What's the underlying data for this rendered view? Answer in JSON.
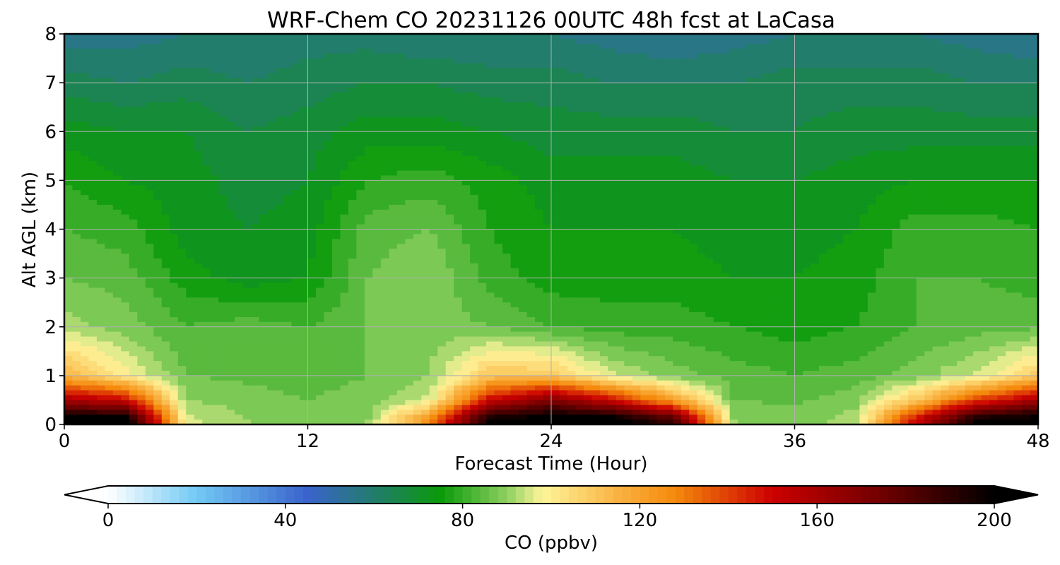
{
  "chart_data": {
    "type": "heatmap",
    "subtype": "filled-contour time-height cross-section",
    "title": "WRF-Chem CO  20231126 00UTC 48h fcst at LaCasa",
    "xlabel": "Forecast Time (Hour)",
    "ylabel": "Alt AGL (km)",
    "xlim": [
      0,
      48
    ],
    "ylim": [
      0,
      8
    ],
    "xticks": [
      "0",
      "12",
      "24",
      "36",
      "48"
    ],
    "yticks": [
      "0",
      "1",
      "2",
      "3",
      "4",
      "5",
      "6",
      "7",
      "8"
    ],
    "grid": true,
    "colorbar": {
      "label": "CO  (ppbv)",
      "range": [
        0,
        200
      ],
      "ticks": [
        "0",
        "40",
        "80",
        "120",
        "160",
        "200"
      ],
      "extend": "both",
      "orientation": "horizontal",
      "stops": [
        {
          "v": 0,
          "color": "#ffffff"
        },
        {
          "v": 20,
          "color": "#72c9f4"
        },
        {
          "v": 45,
          "color": "#3a63cc"
        },
        {
          "v": 62,
          "color": "#1f8060"
        },
        {
          "v": 75,
          "color": "#0a9a0a"
        },
        {
          "v": 90,
          "color": "#8ed060"
        },
        {
          "v": 98,
          "color": "#fff59a"
        },
        {
          "v": 115,
          "color": "#f9b242"
        },
        {
          "v": 128,
          "color": "#f58a0c"
        },
        {
          "v": 150,
          "color": "#cc0000"
        },
        {
          "v": 175,
          "color": "#6e0000"
        },
        {
          "v": 200,
          "color": "#000000"
        }
      ]
    },
    "field_description": "CO concentration vs forecast hour (x) and altitude (y): highest values (>200 ppbv) near surface around hours 0-3, 17-30 and 42-48; ~85-95 ppbv mid-levels; ~55-65 ppbv near 8 km.",
    "field_samples": {
      "hours": [
        0,
        3,
        6,
        9,
        12,
        15,
        18,
        21,
        24,
        27,
        30,
        33,
        36,
        39,
        42,
        45,
        48
      ],
      "altitudes_km": [
        0.1,
        0.5,
        1.0,
        2.0,
        3.0,
        4.0,
        5.0,
        6.0,
        7.0,
        8.0
      ],
      "values_ppbv": [
        [
          205,
          205,
          95,
          90,
          88,
          90,
          125,
          200,
          205,
          205,
          185,
          90,
          88,
          92,
          150,
          200,
          205
        ],
        [
          160,
          150,
          90,
          88,
          86,
          88,
          95,
          150,
          170,
          150,
          120,
          86,
          85,
          88,
          110,
          140,
          160
        ],
        [
          115,
          100,
          86,
          85,
          84,
          86,
          90,
          110,
          110,
          95,
          88,
          84,
          82,
          84,
          88,
          95,
          108
        ],
        [
          92,
          88,
          82,
          84,
          82,
          86,
          88,
          86,
          82,
          80,
          80,
          78,
          76,
          78,
          82,
          84,
          85
        ],
        [
          86,
          84,
          76,
          72,
          74,
          86,
          90,
          80,
          76,
          76,
          76,
          74,
          74,
          76,
          82,
          82,
          80
        ],
        [
          82,
          80,
          72,
          70,
          72,
          84,
          86,
          78,
          74,
          74,
          74,
          72,
          72,
          74,
          80,
          80,
          78
        ],
        [
          78,
          74,
          72,
          68,
          70,
          78,
          80,
          76,
          72,
          72,
          72,
          70,
          70,
          72,
          74,
          74,
          74
        ],
        [
          72,
          70,
          70,
          66,
          68,
          72,
          72,
          70,
          68,
          68,
          68,
          66,
          66,
          68,
          68,
          68,
          68
        ],
        [
          64,
          62,
          64,
          62,
          64,
          66,
          66,
          64,
          64,
          62,
          62,
          62,
          64,
          64,
          64,
          62,
          62
        ],
        [
          55,
          56,
          58,
          58,
          60,
          60,
          58,
          58,
          58,
          56,
          54,
          56,
          58,
          58,
          58,
          56,
          54
        ]
      ]
    }
  }
}
